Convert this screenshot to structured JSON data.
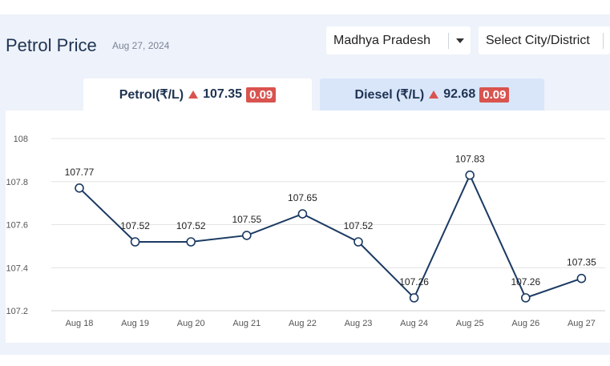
{
  "header": {
    "title": "Petrol Price",
    "date": "Aug 27, 2024"
  },
  "filters": {
    "state": "Madhya Pradesh",
    "city_placeholder": "Select City/District"
  },
  "tabs": [
    {
      "label": "Petrol(₹/L)",
      "price": "107.35",
      "change": "0.09",
      "direction": "up",
      "active": true
    },
    {
      "label": "Diesel (₹/L)",
      "price": "92.68",
      "change": "0.09",
      "direction": "up",
      "active": false
    }
  ],
  "colors": {
    "line": "#1b3a63",
    "accent_up": "#d9534f",
    "active_tab": "#ffffff",
    "inactive_tab": "#d9e6fa"
  },
  "chart_data": {
    "type": "line",
    "categories": [
      "Aug 18",
      "Aug 19",
      "Aug 20",
      "Aug 21",
      "Aug 22",
      "Aug 23",
      "Aug 24",
      "Aug 25",
      "Aug 26",
      "Aug 27"
    ],
    "values": [
      107.77,
      107.52,
      107.52,
      107.55,
      107.65,
      107.52,
      107.26,
      107.83,
      107.26,
      107.35
    ],
    "data_labels": [
      "107.77",
      "107.52",
      "107.52",
      "107.55",
      "107.65",
      "107.52",
      "107.26",
      "107.83",
      "107.26",
      "107.35"
    ],
    "yticks": [
      107.2,
      107.4,
      107.6,
      107.8,
      108
    ],
    "ytick_labels": [
      "107.2",
      "107.4",
      "107.6",
      "107.8",
      "108"
    ],
    "ylim": [
      107.2,
      108
    ],
    "grid": true,
    "title": "",
    "xlabel": "",
    "ylabel": ""
  }
}
